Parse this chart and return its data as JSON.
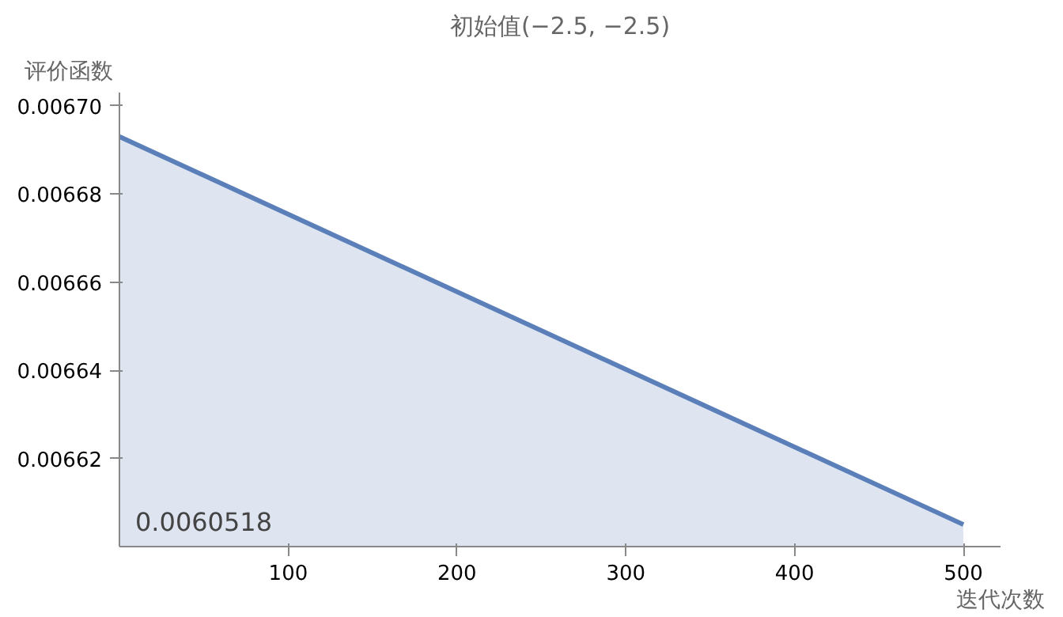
{
  "chart_data": {
    "type": "area",
    "title": "初始值(−2.5, −2.5)",
    "ylabel": "评价函数",
    "xlabel": "迭代次数",
    "x": [
      0,
      500
    ],
    "series": [
      {
        "color": "#5b7fb9",
        "values": [
          0.006693,
          0.006605
        ]
      }
    ],
    "xlim": [
      0,
      522
    ],
    "ylim": [
      0.0066,
      0.006703
    ],
    "xticks": [
      100,
      200,
      300,
      400,
      500
    ],
    "yticks": [
      {
        "value": 0.00662,
        "label": "0.00662"
      },
      {
        "value": 0.00664,
        "label": "0.00664"
      },
      {
        "value": 0.00666,
        "label": "0.00666"
      },
      {
        "value": 0.00668,
        "label": "0.00668"
      },
      {
        "value": 0.0067,
        "label": "0.00670"
      }
    ],
    "annotations": [
      "0.0060518"
    ],
    "grid": false
  }
}
